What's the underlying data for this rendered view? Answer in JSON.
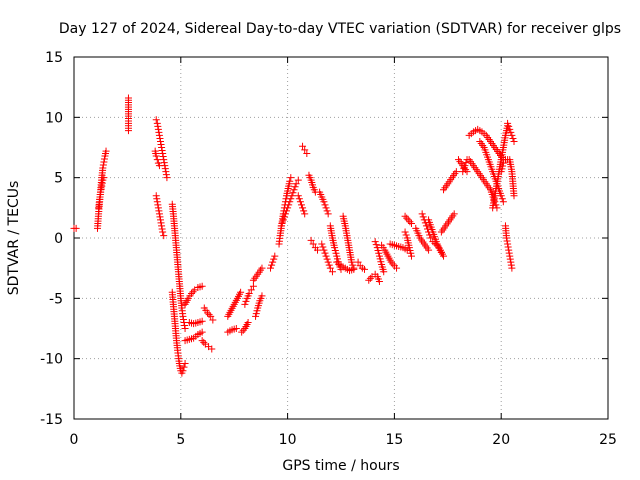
{
  "chart_data": {
    "type": "scatter",
    "title": "Day 127 of 2024, Sidereal Day-to-day VTEC variation (SDTVAR) for receiver glps",
    "xlabel": "GPS time / hours",
    "ylabel": "SDTVAR / TECUs",
    "xlim": [
      0,
      25
    ],
    "ylim": [
      -15,
      15
    ],
    "xticks": [
      0,
      5,
      10,
      15,
      20,
      25
    ],
    "yticks": [
      -15,
      -10,
      -5,
      0,
      5,
      10,
      15
    ],
    "grid": true,
    "marker": "+",
    "color": "#ff0000",
    "segments": [
      [
        [
          0.0,
          0.8
        ],
        [
          0.1,
          0.8
        ]
      ],
      [
        [
          1.1,
          0.8
        ],
        [
          1.15,
          2.0
        ],
        [
          1.2,
          3.0
        ],
        [
          1.25,
          4.0
        ],
        [
          1.3,
          5.0
        ],
        [
          1.35,
          5.8
        ],
        [
          1.4,
          6.3
        ],
        [
          1.45,
          6.8
        ],
        [
          1.5,
          7.2
        ]
      ],
      [
        [
          1.15,
          2.5
        ],
        [
          1.2,
          3.2
        ],
        [
          1.25,
          3.8
        ],
        [
          1.3,
          4.3
        ],
        [
          1.35,
          4.8
        ],
        [
          1.4,
          5.0
        ]
      ],
      [
        [
          2.55,
          11.6
        ],
        [
          2.55,
          10.1
        ],
        [
          2.55,
          8.9
        ]
      ],
      [
        [
          3.85,
          9.8
        ],
        [
          3.9,
          9.5
        ],
        [
          3.95,
          9.0
        ],
        [
          4.0,
          8.5
        ],
        [
          4.05,
          8.0
        ],
        [
          4.1,
          7.5
        ],
        [
          4.15,
          7.0
        ],
        [
          4.2,
          6.5
        ],
        [
          4.25,
          6.0
        ],
        [
          4.3,
          5.5
        ],
        [
          4.35,
          5.0
        ]
      ],
      [
        [
          3.8,
          7.2
        ],
        [
          3.85,
          6.8
        ],
        [
          3.9,
          6.5
        ],
        [
          3.95,
          6.2
        ],
        [
          4.0,
          6.0
        ]
      ],
      [
        [
          3.85,
          3.5
        ],
        [
          3.9,
          3.0
        ],
        [
          3.95,
          2.5
        ],
        [
          4.0,
          2.0
        ],
        [
          4.05,
          1.5
        ],
        [
          4.1,
          1.0
        ],
        [
          4.15,
          0.5
        ],
        [
          4.2,
          0.2
        ]
      ],
      [
        [
          4.6,
          2.8
        ],
        [
          4.65,
          2.0
        ],
        [
          4.7,
          1.0
        ],
        [
          4.75,
          0.0
        ],
        [
          4.8,
          -1.0
        ],
        [
          4.85,
          -2.0
        ],
        [
          4.9,
          -3.0
        ],
        [
          4.95,
          -4.0
        ],
        [
          5.0,
          -5.0
        ],
        [
          5.05,
          -5.8
        ],
        [
          5.1,
          -6.5
        ],
        [
          5.15,
          -7.0
        ],
        [
          5.2,
          -7.5
        ]
      ],
      [
        [
          4.6,
          -4.5
        ],
        [
          4.65,
          -5.5
        ],
        [
          4.7,
          -6.5
        ],
        [
          4.75,
          -7.5
        ],
        [
          4.8,
          -8.5
        ],
        [
          4.85,
          -9.3
        ],
        [
          4.9,
          -10.0
        ],
        [
          4.95,
          -10.6
        ],
        [
          5.0,
          -11.0
        ],
        [
          5.05,
          -11.2
        ],
        [
          5.1,
          -11.0
        ],
        [
          5.15,
          -10.7
        ],
        [
          5.2,
          -10.4
        ]
      ],
      [
        [
          5.2,
          -5.5
        ],
        [
          5.35,
          -5.0
        ],
        [
          5.5,
          -4.6
        ],
        [
          5.65,
          -4.3
        ],
        [
          5.8,
          -4.1
        ],
        [
          6.0,
          -4.0
        ]
      ],
      [
        [
          5.2,
          -8.5
        ],
        [
          5.4,
          -8.4
        ],
        [
          5.6,
          -8.3
        ],
        [
          5.8,
          -8.0
        ],
        [
          6.0,
          -7.8
        ]
      ],
      [
        [
          5.4,
          -7.0
        ],
        [
          5.6,
          -7.1
        ],
        [
          5.8,
          -7.0
        ],
        [
          6.0,
          -6.9
        ]
      ],
      [
        [
          6.0,
          -8.5
        ],
        [
          6.15,
          -8.8
        ],
        [
          6.3,
          -9.0
        ],
        [
          6.45,
          -9.2
        ]
      ],
      [
        [
          6.1,
          -5.8
        ],
        [
          6.25,
          -6.2
        ],
        [
          6.4,
          -6.5
        ],
        [
          6.5,
          -6.8
        ]
      ],
      [
        [
          7.2,
          -6.5
        ],
        [
          7.35,
          -6.0
        ],
        [
          7.5,
          -5.5
        ],
        [
          7.65,
          -5.0
        ],
        [
          7.8,
          -4.5
        ]
      ],
      [
        [
          7.2,
          -7.8
        ],
        [
          7.4,
          -7.6
        ],
        [
          7.6,
          -7.5
        ]
      ],
      [
        [
          7.85,
          -7.8
        ],
        [
          8.0,
          -7.5
        ],
        [
          8.15,
          -7.0
        ]
      ],
      [
        [
          8.0,
          -5.5
        ],
        [
          8.1,
          -5.0
        ],
        [
          8.2,
          -4.6
        ],
        [
          8.3,
          -4.3
        ],
        [
          8.4,
          -4.0
        ]
      ],
      [
        [
          8.5,
          -6.5
        ],
        [
          8.6,
          -5.8
        ],
        [
          8.7,
          -5.2
        ],
        [
          8.8,
          -4.8
        ]
      ],
      [
        [
          8.4,
          -3.5
        ],
        [
          8.6,
          -3.0
        ],
        [
          8.8,
          -2.5
        ]
      ],
      [
        [
          9.2,
          -2.5
        ],
        [
          9.3,
          -2.0
        ],
        [
          9.4,
          -1.5
        ]
      ],
      [
        [
          9.6,
          -0.5
        ],
        [
          9.65,
          0.2
        ],
        [
          9.7,
          0.8
        ],
        [
          9.75,
          1.4
        ],
        [
          9.8,
          2.0
        ],
        [
          9.85,
          2.5
        ],
        [
          9.9,
          3.0
        ],
        [
          9.95,
          3.5
        ],
        [
          10.0,
          3.9
        ],
        [
          10.05,
          4.3
        ],
        [
          10.1,
          4.7
        ],
        [
          10.15,
          5.0
        ]
      ],
      [
        [
          9.7,
          1.0
        ],
        [
          9.8,
          1.5
        ],
        [
          9.9,
          2.0
        ],
        [
          10.0,
          2.5
        ],
        [
          10.1,
          3.0
        ],
        [
          10.2,
          3.5
        ],
        [
          10.3,
          4.0
        ],
        [
          10.4,
          4.5
        ],
        [
          10.5,
          4.8
        ]
      ],
      [
        [
          10.5,
          3.5
        ],
        [
          10.6,
          3.0
        ],
        [
          10.7,
          2.5
        ],
        [
          10.8,
          2.0
        ]
      ],
      [
        [
          10.7,
          7.6
        ],
        [
          10.8,
          7.3
        ],
        [
          10.9,
          7.0
        ]
      ],
      [
        [
          11.0,
          5.2
        ],
        [
          11.1,
          4.8
        ],
        [
          11.2,
          4.2
        ],
        [
          11.3,
          3.8
        ]
      ],
      [
        [
          11.1,
          -0.2
        ],
        [
          11.2,
          -0.5
        ],
        [
          11.3,
          -0.8
        ],
        [
          11.4,
          -1.0
        ]
      ],
      [
        [
          11.5,
          3.8
        ],
        [
          11.6,
          3.4
        ],
        [
          11.7,
          3.0
        ],
        [
          11.8,
          2.5
        ],
        [
          11.9,
          2.0
        ]
      ],
      [
        [
          11.6,
          -0.5
        ],
        [
          11.7,
          -1.0
        ],
        [
          11.8,
          -1.5
        ],
        [
          11.9,
          -2.0
        ],
        [
          12.0,
          -2.5
        ],
        [
          12.1,
          -2.8
        ]
      ],
      [
        [
          12.0,
          1.0
        ],
        [
          12.1,
          0.0
        ],
        [
          12.2,
          -0.8
        ],
        [
          12.3,
          -1.5
        ],
        [
          12.4,
          -2.2
        ],
        [
          12.5,
          -2.6
        ]
      ],
      [
        [
          12.6,
          1.8
        ],
        [
          12.7,
          1.0
        ],
        [
          12.8,
          0.0
        ],
        [
          12.9,
          -1.0
        ],
        [
          13.0,
          -2.0
        ],
        [
          13.1,
          -2.5
        ]
      ],
      [
        [
          12.3,
          -2.0
        ],
        [
          12.5,
          -2.3
        ],
        [
          12.7,
          -2.5
        ],
        [
          12.9,
          -2.7
        ],
        [
          13.1,
          -2.6
        ]
      ],
      [
        [
          13.3,
          -2.0
        ],
        [
          13.4,
          -2.3
        ],
        [
          13.5,
          -2.5
        ],
        [
          13.6,
          -2.6
        ]
      ],
      [
        [
          13.8,
          -3.5
        ],
        [
          13.95,
          -3.2
        ],
        [
          14.1,
          -3.0
        ],
        [
          14.2,
          -3.2
        ],
        [
          14.3,
          -3.6
        ]
      ],
      [
        [
          14.1,
          -0.3
        ],
        [
          14.2,
          -0.8
        ],
        [
          14.3,
          -1.5
        ],
        [
          14.4,
          -2.2
        ],
        [
          14.5,
          -2.8
        ]
      ],
      [
        [
          14.4,
          -0.6
        ],
        [
          14.55,
          -1.0
        ],
        [
          14.7,
          -1.5
        ],
        [
          14.85,
          -2.0
        ],
        [
          15.0,
          -2.3
        ],
        [
          15.1,
          -2.5
        ]
      ],
      [
        [
          14.8,
          -0.5
        ],
        [
          15.0,
          -0.6
        ],
        [
          15.2,
          -0.7
        ],
        [
          15.4,
          -0.8
        ],
        [
          15.6,
          -1.0
        ]
      ],
      [
        [
          15.5,
          0.5
        ],
        [
          15.6,
          0.0
        ],
        [
          15.7,
          -0.8
        ],
        [
          15.8,
          -1.5
        ]
      ],
      [
        [
          15.5,
          1.8
        ],
        [
          15.65,
          1.5
        ],
        [
          15.8,
          1.2
        ]
      ],
      [
        [
          16.0,
          0.8
        ],
        [
          16.2,
          0.0
        ],
        [
          16.4,
          -0.5
        ],
        [
          16.6,
          -1.0
        ]
      ],
      [
        [
          16.3,
          2.0
        ],
        [
          16.4,
          1.5
        ],
        [
          16.5,
          1.0
        ],
        [
          16.6,
          0.5
        ],
        [
          16.7,
          0.0
        ]
      ],
      [
        [
          16.6,
          1.5
        ],
        [
          16.8,
          0.5
        ],
        [
          17.0,
          -0.5
        ],
        [
          17.2,
          -1.2
        ]
      ],
      [
        [
          16.8,
          -0.3
        ],
        [
          17.0,
          -0.6
        ],
        [
          17.15,
          -1.0
        ],
        [
          17.3,
          -1.5
        ]
      ],
      [
        [
          17.2,
          0.5
        ],
        [
          17.4,
          1.0
        ],
        [
          17.6,
          1.5
        ],
        [
          17.8,
          2.0
        ]
      ],
      [
        [
          17.3,
          4.0
        ],
        [
          17.5,
          4.5
        ],
        [
          17.7,
          5.0
        ],
        [
          17.9,
          5.5
        ]
      ],
      [
        [
          18.0,
          6.5
        ],
        [
          18.2,
          6.0
        ],
        [
          18.4,
          5.5
        ]
      ],
      [
        [
          18.2,
          5.5
        ],
        [
          18.3,
          6.0
        ],
        [
          18.4,
          6.5
        ]
      ],
      [
        [
          18.5,
          6.5
        ],
        [
          18.7,
          6.0
        ],
        [
          18.9,
          5.5
        ],
        [
          19.1,
          5.0
        ],
        [
          19.3,
          4.5
        ],
        [
          19.5,
          4.0
        ],
        [
          19.7,
          3.0
        ],
        [
          19.8,
          2.5
        ]
      ],
      [
        [
          18.5,
          8.5
        ],
        [
          18.7,
          8.8
        ],
        [
          18.9,
          9.0
        ],
        [
          19.1,
          8.8
        ],
        [
          19.3,
          8.5
        ],
        [
          19.5,
          8.0
        ],
        [
          19.7,
          7.5
        ],
        [
          19.9,
          7.0
        ],
        [
          20.1,
          6.5
        ]
      ],
      [
        [
          19.0,
          8.0
        ],
        [
          19.2,
          7.5
        ],
        [
          19.4,
          6.5
        ],
        [
          19.6,
          5.5
        ],
        [
          19.8,
          4.5
        ],
        [
          20.0,
          3.5
        ],
        [
          20.1,
          3.0
        ]
      ],
      [
        [
          19.6,
          2.5
        ],
        [
          19.7,
          3.5
        ],
        [
          19.8,
          4.5
        ],
        [
          19.9,
          5.5
        ],
        [
          20.0,
          6.5
        ],
        [
          20.1,
          7.5
        ],
        [
          20.2,
          8.5
        ],
        [
          20.3,
          9.3
        ]
      ],
      [
        [
          20.0,
          5.5
        ],
        [
          20.1,
          6.2
        ],
        [
          20.2,
          6.5
        ],
        [
          20.3,
          6.5
        ],
        [
          20.4,
          6.3
        ]
      ],
      [
        [
          20.3,
          9.5
        ],
        [
          20.4,
          9.0
        ],
        [
          20.5,
          8.5
        ],
        [
          20.6,
          8.0
        ]
      ],
      [
        [
          20.4,
          6.5
        ],
        [
          20.5,
          5.5
        ],
        [
          20.55,
          4.5
        ],
        [
          20.6,
          3.5
        ]
      ],
      [
        [
          20.2,
          1.0
        ],
        [
          20.25,
          0.0
        ],
        [
          20.3,
          -0.5
        ],
        [
          20.35,
          -1.0
        ],
        [
          20.4,
          -1.5
        ],
        [
          20.45,
          -2.0
        ],
        [
          20.5,
          -2.5
        ]
      ]
    ]
  }
}
